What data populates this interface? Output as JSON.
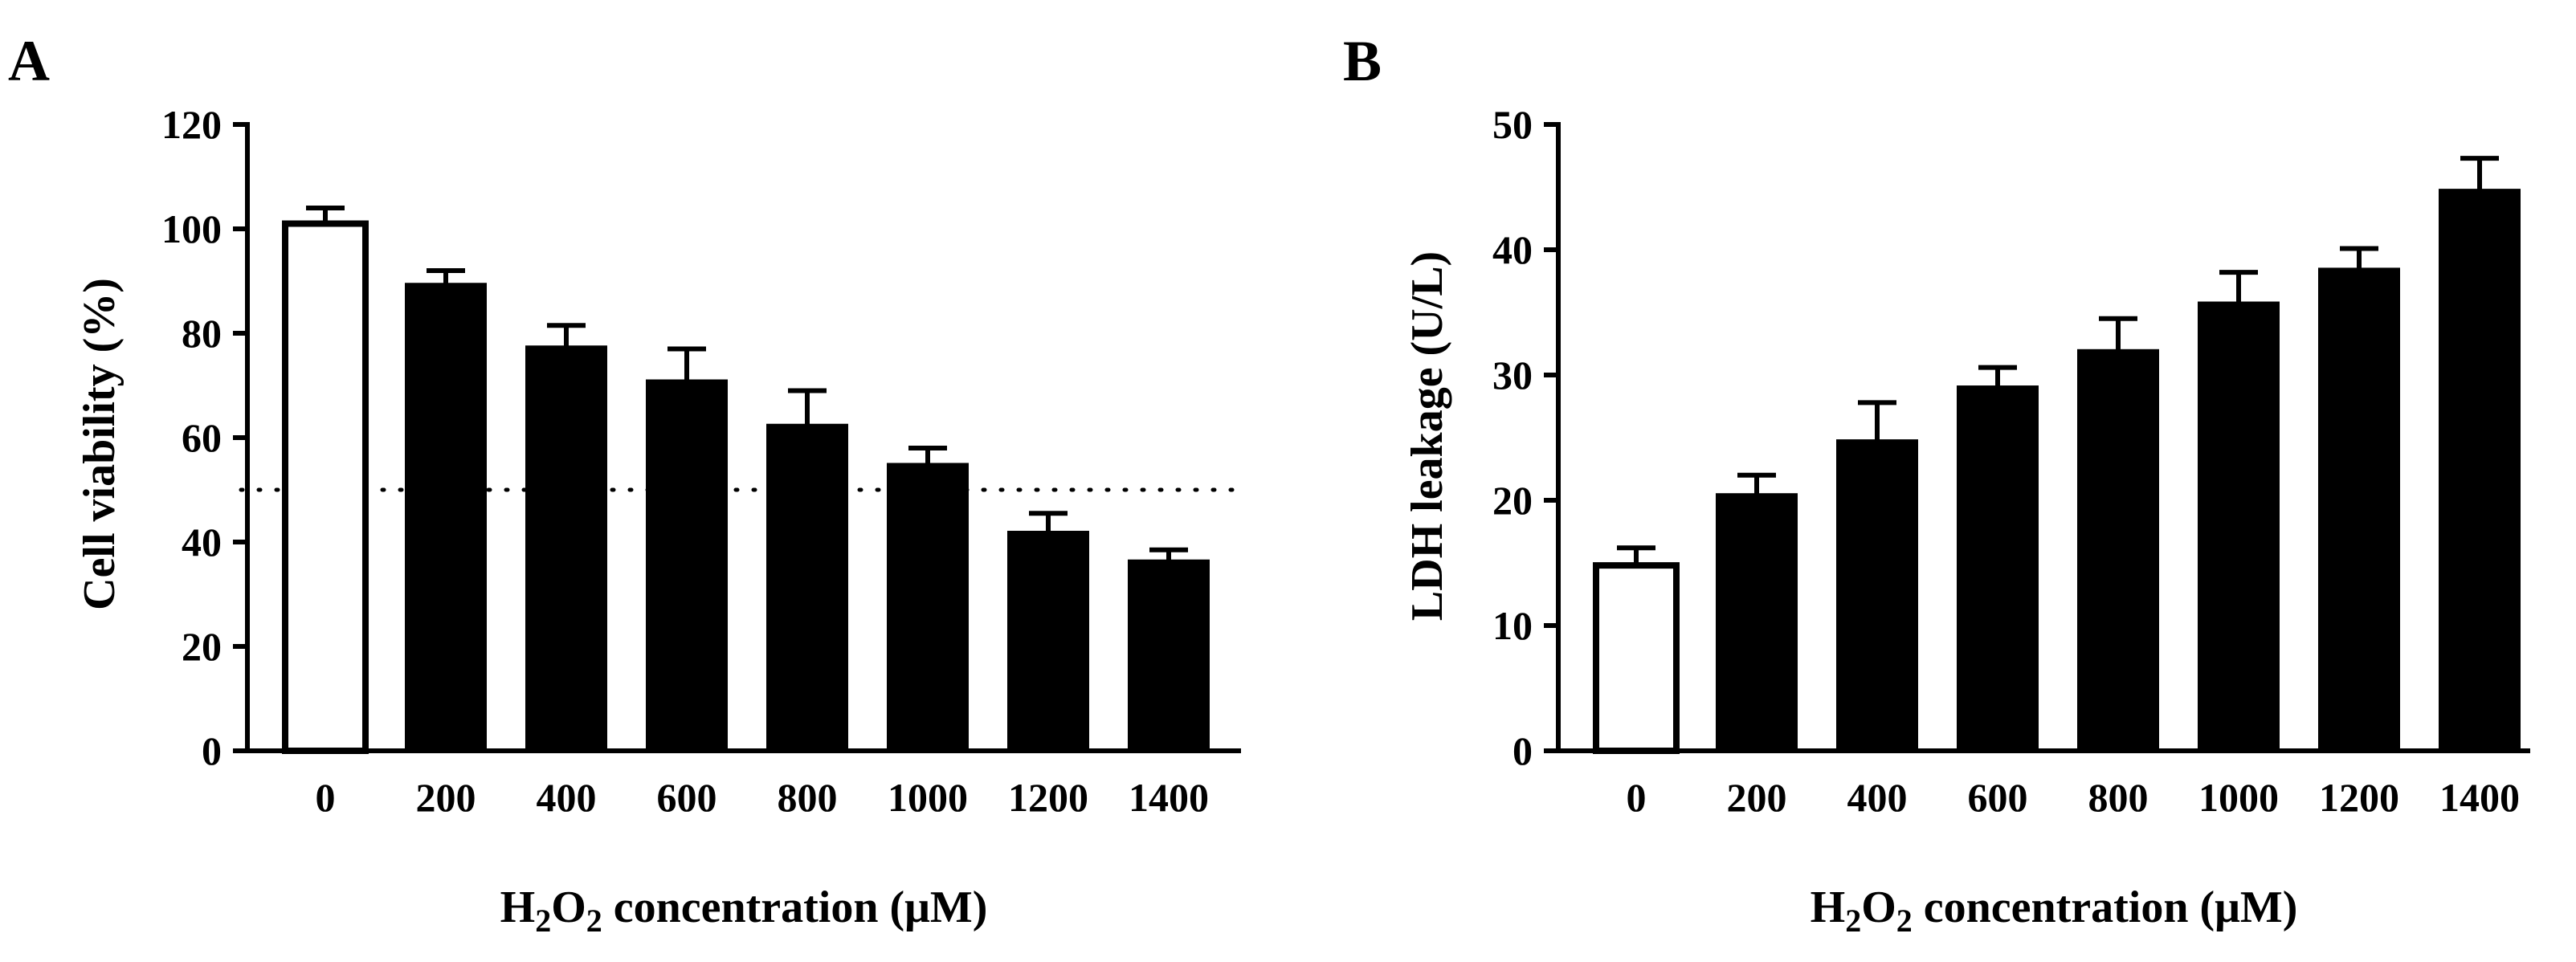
{
  "colors": {
    "ink": "#000000",
    "control_fill": "#ffffff",
    "bar_fill": "#000000"
  },
  "chart_data": [
    {
      "panel": "A",
      "type": "bar",
      "categories": [
        "0",
        "200",
        "400",
        "600",
        "800",
        "1000",
        "1200",
        "1400"
      ],
      "values": [
        101,
        89.5,
        77.5,
        71,
        62.5,
        55,
        42,
        36.5
      ],
      "errors": [
        3,
        2.5,
        4,
        6,
        6.5,
        3,
        3.5,
        2
      ],
      "xlabel_parts": [
        "H",
        "2",
        "O",
        "2",
        " concentration (μM)"
      ],
      "ylabel": "Cell viability (%)",
      "ylim": [
        0,
        120
      ],
      "yticks": [
        "0",
        "20",
        "40",
        "60",
        "80",
        "100",
        "120"
      ],
      "ytick_values": [
        0,
        20,
        40,
        60,
        80,
        100,
        120
      ],
      "reference_line": 50,
      "control_style": "open bar",
      "grid": false
    },
    {
      "panel": "B",
      "type": "bar",
      "categories": [
        "0",
        "200",
        "400",
        "600",
        "800",
        "1000",
        "1200",
        "1400"
      ],
      "values": [
        14.8,
        20.5,
        24.8,
        29.1,
        32,
        35.8,
        38.5,
        44.8
      ],
      "errors": [
        1.4,
        1.5,
        3,
        1.5,
        2.5,
        2.4,
        1.6,
        2.5
      ],
      "xlabel_parts": [
        "H",
        "2",
        "O",
        "2",
        " concentration (μM)"
      ],
      "ylabel": "LDH leakage (U/L)",
      "ylim": [
        0,
        50
      ],
      "yticks": [
        "0",
        "10",
        "20",
        "30",
        "40",
        "50"
      ],
      "ytick_values": [
        0,
        10,
        20,
        30,
        40,
        50
      ],
      "reference_line": null,
      "control_style": "open bar",
      "grid": false
    }
  ]
}
